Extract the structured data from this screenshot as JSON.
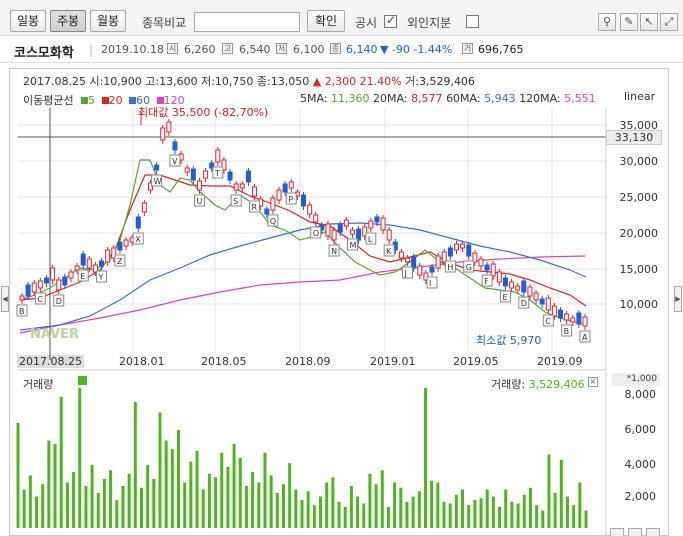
{
  "toolbar": {
    "daily": "일봉",
    "weekly": "주봉",
    "monthly": "월봉",
    "compare_label": "종목비교",
    "compare_value": "",
    "confirm": "확인",
    "public_label": "공시",
    "foreign_label": "외인지분",
    "icons": [
      "pin-icon",
      "pencil-icon",
      "cursor-icon",
      "expand-icon"
    ]
  },
  "stock": {
    "name": "코스모화학",
    "date": "2019.10.18",
    "open_icon": "시",
    "open": "6,260",
    "high_icon": "고",
    "high": "6,540",
    "low_icon": "저",
    "low": "6,100",
    "close_icon": "종",
    "close": "6,140",
    "change": "▼ -90 -1.44%",
    "volume_icon": "거",
    "volume": "696,765"
  },
  "chart_header": {
    "summary_left": "2017.08.25 시:10,900 고:13,600 저:10,750 종:13,050",
    "summary_change": "▲ 2,300 21.40%",
    "summary_volume": "거:3,529,406",
    "ma_label": "이동평균선",
    "ma5": "5",
    "ma20": "20",
    "ma60": "60",
    "ma120": "120",
    "ma_values": {
      "ma5": "5MA:",
      "v5": "11,360",
      "ma20": "20MA:",
      "v20": "8,577",
      "ma60": "60MA:",
      "v60": "5,943",
      "ma120": "120MA:",
      "v120": "5,551"
    },
    "scale": "linear",
    "max_label": "최대값 35,500 (-82,70%)",
    "min_label": "최소값 5,970",
    "crosshair_price": "33,130",
    "watermark": "NAVER"
  },
  "colors": {
    "up": "#e8202a",
    "down": "#1c5fd8",
    "ma5": "#55a832",
    "ma20": "#e02020",
    "ma60": "#3a6fd8",
    "ma120": "#e040c0",
    "volume": "#4fb51f"
  },
  "y_axis": [
    "35,000",
    "30,000",
    "25,000",
    "20,000",
    "15,000",
    "10,000"
  ],
  "x_axis": [
    "2017.08.25",
    "2018.01",
    "2018.05",
    "2018.09",
    "2019.01",
    "2019.05",
    "2019.09"
  ],
  "volume": {
    "label": "거래량",
    "summary_label": "거래량:",
    "summary_value": "3,529,406",
    "unit": "*1,000",
    "y_axis": [
      "8,000",
      "6,000",
      "4,000",
      "2,000"
    ]
  },
  "markers": [
    "B",
    "C",
    "D",
    "E",
    "Y",
    "Z",
    "X",
    "W",
    "V",
    "U",
    "T",
    "S",
    "R",
    "Q",
    "P",
    "O",
    "N",
    "M",
    "L",
    "K",
    "J",
    "I",
    "H",
    "G",
    "F",
    "E",
    "D",
    "C",
    "B",
    "A"
  ]
}
